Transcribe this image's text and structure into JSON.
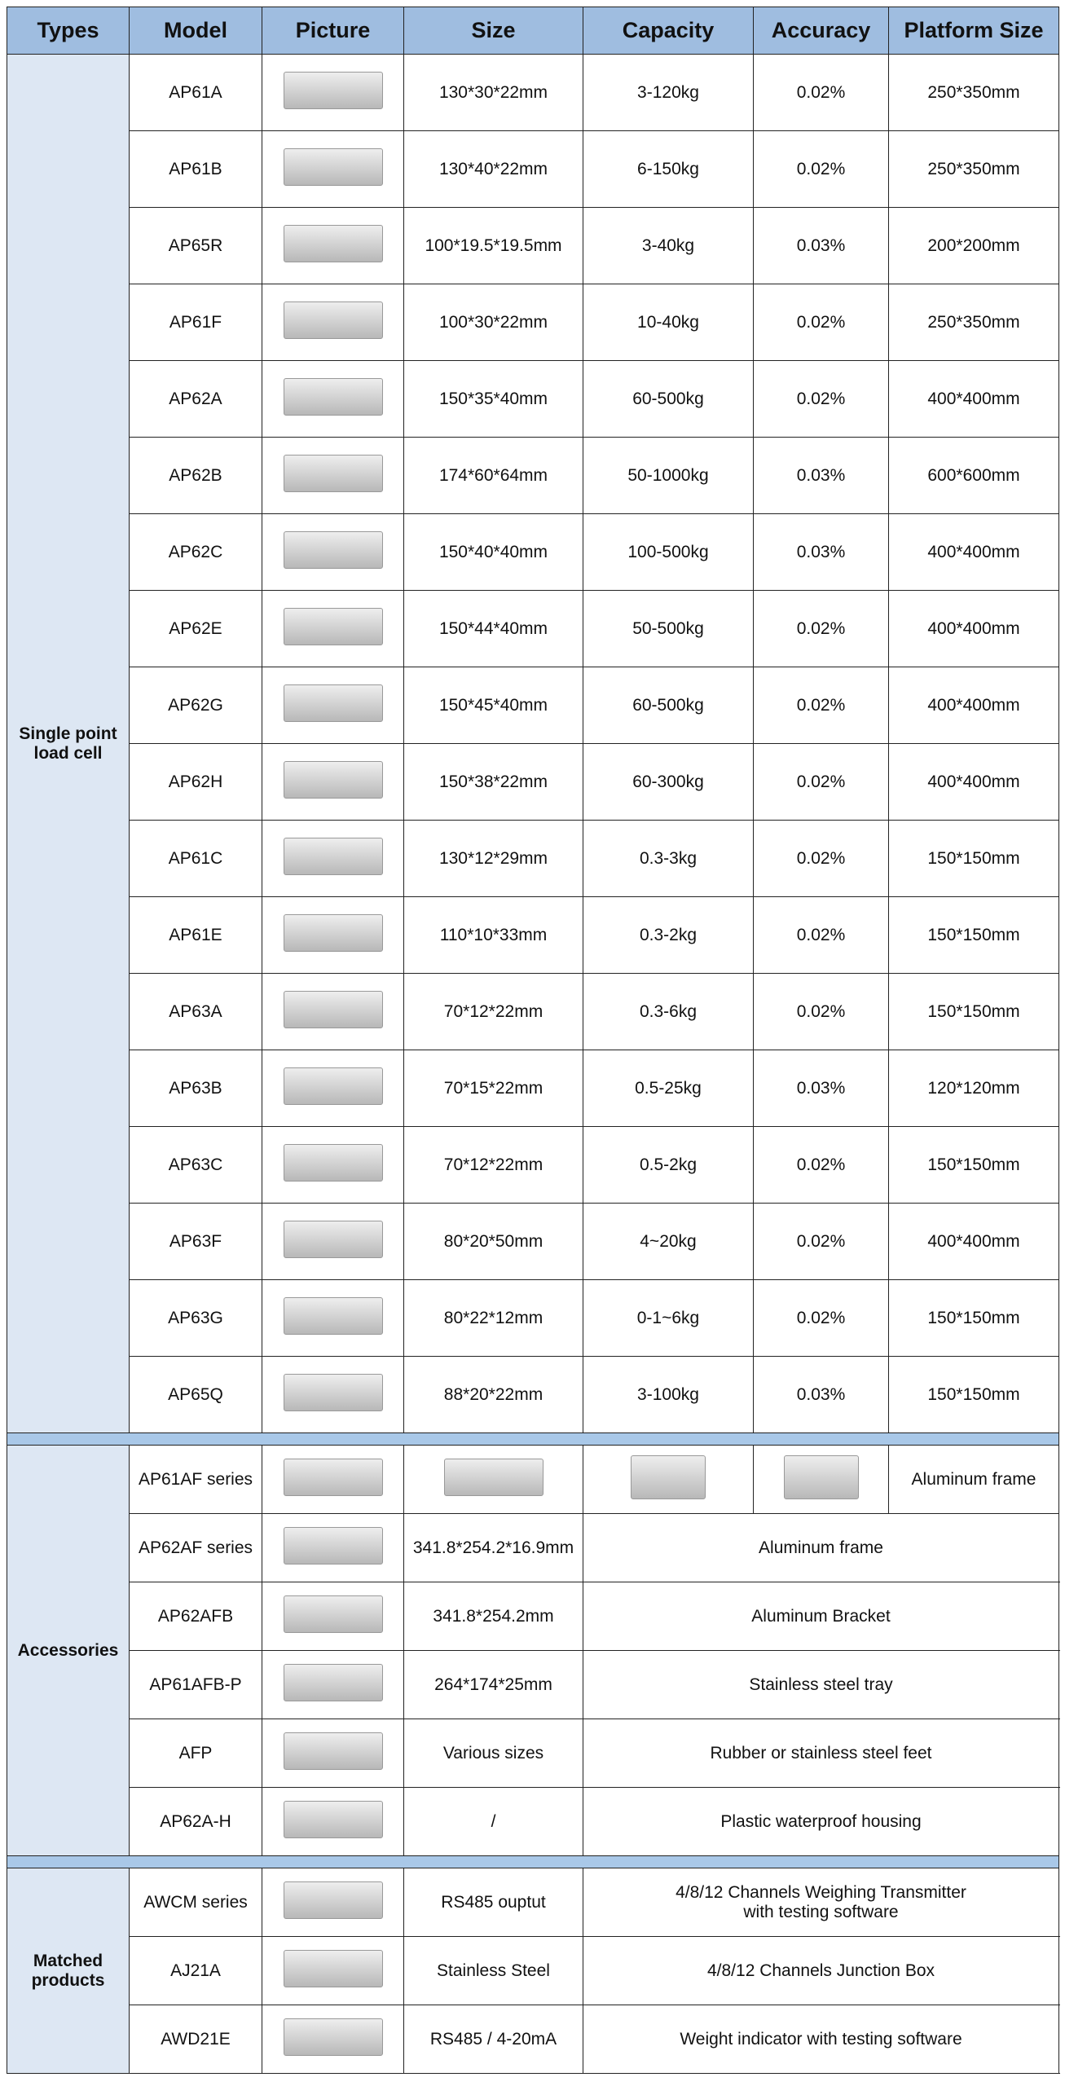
{
  "header": [
    "Types",
    "Model",
    "Picture",
    "Size",
    "Capacity",
    "Accuracy",
    "Platform Size"
  ],
  "sections": [
    {
      "type": "Single point load cell",
      "rows": [
        {
          "model": "AP61A",
          "size": "130*30*22mm",
          "capacity": "3-120kg",
          "accuracy": "0.02%",
          "platform": "250*350mm"
        },
        {
          "model": "AP61B",
          "size": "130*40*22mm",
          "capacity": "6-150kg",
          "accuracy": "0.02%",
          "platform": "250*350mm"
        },
        {
          "model": "AP65R",
          "size": "100*19.5*19.5mm",
          "capacity": "3-40kg",
          "accuracy": "0.03%",
          "platform": "200*200mm"
        },
        {
          "model": "AP61F",
          "size": "100*30*22mm",
          "capacity": "10-40kg",
          "accuracy": "0.02%",
          "platform": "250*350mm"
        },
        {
          "model": "AP62A",
          "size": "150*35*40mm",
          "capacity": "60-500kg",
          "accuracy": "0.02%",
          "platform": "400*400mm"
        },
        {
          "model": "AP62B",
          "size": "174*60*64mm",
          "capacity": "50-1000kg",
          "accuracy": "0.03%",
          "platform": "600*600mm"
        },
        {
          "model": "AP62C",
          "size": "150*40*40mm",
          "capacity": "100-500kg",
          "accuracy": "0.03%",
          "platform": "400*400mm"
        },
        {
          "model": "AP62E",
          "size": "150*44*40mm",
          "capacity": "50-500kg",
          "accuracy": "0.02%",
          "platform": "400*400mm"
        },
        {
          "model": "AP62G",
          "size": "150*45*40mm",
          "capacity": "60-500kg",
          "accuracy": "0.02%",
          "platform": "400*400mm"
        },
        {
          "model": "AP62H",
          "size": "150*38*22mm",
          "capacity": "60-300kg",
          "accuracy": "0.02%",
          "platform": "400*400mm"
        },
        {
          "model": "AP61C",
          "size": "130*12*29mm",
          "capacity": "0.3-3kg",
          "accuracy": "0.02%",
          "platform": "150*150mm"
        },
        {
          "model": "AP61E",
          "size": "110*10*33mm",
          "capacity": "0.3-2kg",
          "accuracy": "0.02%",
          "platform": "150*150mm"
        },
        {
          "model": "AP63A",
          "size": "70*12*22mm",
          "capacity": "0.3-6kg",
          "accuracy": "0.02%",
          "platform": "150*150mm"
        },
        {
          "model": "AP63B",
          "size": "70*15*22mm",
          "capacity": "0.5-25kg",
          "accuracy": "0.03%",
          "platform": "120*120mm"
        },
        {
          "model": "AP63C",
          "size": "70*12*22mm",
          "capacity": "0.5-2kg",
          "accuracy": "0.02%",
          "platform": "150*150mm"
        },
        {
          "model": "AP63F",
          "size": "80*20*50mm",
          "capacity": "4~20kg",
          "accuracy": "0.02%",
          "platform": "400*400mm"
        },
        {
          "model": "AP63G",
          "size": "80*22*12mm",
          "capacity": "0-1~6kg",
          "accuracy": "0.02%",
          "platform": "150*150mm"
        },
        {
          "model": "AP65Q",
          "size": "88*20*22mm",
          "capacity": "3-100kg",
          "accuracy": "0.03%",
          "platform": "150*150mm"
        }
      ]
    },
    {
      "type": "Accessories",
      "rows": [
        {
          "model": "AP61AF series",
          "description": "Aluminum frame"
        },
        {
          "model": "AP62AF series",
          "size": "341.8*254.2*16.9mm",
          "description": "Aluminum frame"
        },
        {
          "model": "AP62AFB",
          "size": "341.8*254.2mm",
          "description": "Aluminum Bracket"
        },
        {
          "model": "AP61AFB-P",
          "size": "264*174*25mm",
          "description": "Stainless steel tray"
        },
        {
          "model": "AFP",
          "size": "Various sizes",
          "description": "Rubber or stainless steel feet"
        },
        {
          "model": "AP62A-H",
          "size": "/",
          "description": "Plastic waterproof housing"
        }
      ]
    },
    {
      "type": "Matched products",
      "rows": [
        {
          "model": "AWCM series",
          "size": "RS485 ouptut",
          "description": "4/8/12 Channels Weighing Transmitter\nwith testing software"
        },
        {
          "model": "AJ21A",
          "size": "Stainless Steel",
          "description": "4/8/12 Channels Junction Box"
        },
        {
          "model": "AWD21E",
          "size": "RS485 / 4-20mA",
          "description": "Weight indicator with testing software"
        }
      ]
    }
  ]
}
